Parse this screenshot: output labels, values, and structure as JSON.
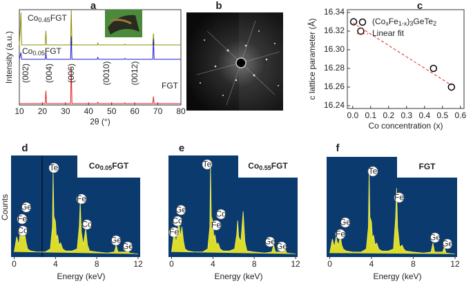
{
  "chart_data": [
    {
      "panel": "a",
      "type": "line",
      "xlabel": "2θ (°)",
      "ylabel": "Intensity (a.u.)",
      "x": [
        10,
        10.4,
        10.7,
        11,
        21.2,
        21.5,
        21.8,
        32.2,
        32.5,
        32.8,
        43.7,
        44,
        44.3,
        55.4,
        55.7,
        56,
        67.8,
        68.1,
        68.4,
        80
      ],
      "xlim": [
        10,
        80
      ],
      "xticks": [
        10,
        20,
        30,
        40,
        50,
        60,
        70,
        80
      ],
      "ylim": [
        0,
        100
      ],
      "series": [
        {
          "name": "Co0.45FGT",
          "color": "#8c8c00",
          "values": [
            63,
            80,
            97,
            63,
            63,
            78,
            63,
            63,
            100,
            63,
            63,
            65,
            63,
            63,
            64,
            63,
            63,
            75,
            63,
            63
          ]
        },
        {
          "name": "Co0.05FGT",
          "color": "#1f1fd0",
          "values": [
            48,
            52,
            55,
            48,
            48,
            55,
            48,
            48,
            72,
            48,
            48,
            50,
            48,
            48,
            49,
            48,
            48,
            69,
            48,
            48
          ]
        },
        {
          "name": "FGT",
          "color": "#e02020",
          "values": [
            1.5,
            1.5,
            1.5,
            1.5,
            1.5,
            15,
            1.5,
            1.5,
            39,
            1.5,
            1.5,
            3,
            1.5,
            1.5,
            2.5,
            1.5,
            1.5,
            9,
            1.5,
            1.5
          ]
        }
      ],
      "annotations": [
        "(002)",
        "(004)",
        "(006)",
        "(0010)",
        "(0012)"
      ]
    },
    {
      "panel": "c",
      "type": "scatter",
      "xlabel": "Co concentration (x)",
      "ylabel": "c lattice parameter (Å)",
      "xlim": [
        -0.03,
        0.62
      ],
      "xticks": [
        {
          "value": 0,
          "label": "0.0"
        },
        0.1,
        0.2,
        0.3,
        0.4,
        0.5,
        0.6
      ],
      "ylim": [
        16.237,
        16.343
      ],
      "yticks": [
        16.24,
        16.26,
        16.28,
        {
          "value": 16.3,
          "label": "16.30"
        },
        16.32,
        16.34
      ],
      "series": [
        {
          "name": "(CoxFe1-x)3GeTe2",
          "color": "#000000",
          "x": [
            0.005,
            0.045,
            0.45,
            0.55
          ],
          "values": [
            16.33,
            16.32,
            16.28,
            16.26
          ]
        },
        {
          "name": "Linear fit",
          "color": "#e02020",
          "type": "line",
          "x": [
            0,
            0.55
          ],
          "values": [
            16.329,
            16.262
          ]
        }
      ]
    },
    {
      "panel": "d",
      "type": "area",
      "title": "Co0.05FGT",
      "xlabel": "Energy (keV)",
      "ylabel": "Counts",
      "xlim": [
        -0.3,
        12.2
      ],
      "xticks": [
        0,
        4,
        8,
        12
      ],
      "ylim": [
        0,
        100
      ],
      "color": "#dcdc2a",
      "x": [
        0,
        0.25,
        0.45,
        0.6,
        0.72,
        0.85,
        1.0,
        1.15,
        1.3,
        1.6,
        2.2,
        3.0,
        3.5,
        3.7,
        3.77,
        3.85,
        4.0,
        4.1,
        4.2,
        4.35,
        4.5,
        4.7,
        5.0,
        5.6,
        6.1,
        6.3,
        6.4,
        6.5,
        6.7,
        6.93,
        7.1,
        7.3,
        8.0,
        9.0,
        9.7,
        9.88,
        10.05,
        10.8,
        10.98,
        11.15,
        12
      ],
      "values": [
        5,
        20,
        12,
        25,
        30,
        18,
        25,
        15,
        8,
        6,
        5,
        5,
        8,
        30,
        85,
        40,
        35,
        18,
        22,
        12,
        14,
        8,
        6,
        6,
        8,
        30,
        55,
        25,
        12,
        28,
        12,
        6,
        5,
        4,
        5,
        12,
        5,
        5,
        8,
        4,
        3
      ],
      "annotations": [
        "Ge",
        "Fe",
        "Co",
        "Te",
        "Fe",
        "Co",
        "Ge",
        "Ge"
      ]
    },
    {
      "panel": "e",
      "type": "area",
      "title": "Co0.55FGT",
      "xlabel": "Energy (keV)",
      "xlim": [
        -0.3,
        12.2
      ],
      "xticks": [
        0,
        4,
        8,
        12
      ],
      "ylim": [
        0,
        100
      ],
      "color": "#dcdc2a",
      "x": [
        0,
        0.25,
        0.45,
        0.6,
        0.72,
        0.85,
        1.0,
        1.15,
        1.3,
        1.6,
        2.2,
        3.0,
        3.5,
        3.7,
        3.77,
        3.85,
        4.0,
        4.1,
        4.2,
        4.35,
        4.5,
        4.7,
        5.0,
        5.6,
        6.1,
        6.3,
        6.4,
        6.5,
        6.7,
        6.93,
        7.1,
        7.3,
        8.0,
        9.0,
        9.7,
        9.88,
        10.05,
        10.8,
        10.98,
        11.15,
        12
      ],
      "values": [
        5,
        25,
        14,
        28,
        35,
        20,
        30,
        16,
        8,
        6,
        5,
        5,
        8,
        30,
        92,
        40,
        35,
        18,
        22,
        12,
        14,
        8,
        6,
        6,
        8,
        22,
        36,
        20,
        15,
        45,
        15,
        6,
        5,
        4,
        5,
        12,
        5,
        5,
        8,
        4,
        3
      ],
      "annotations": [
        "Ge",
        "Co",
        "Fe",
        "Te",
        "Co",
        "Fe",
        "Ge",
        "Ge"
      ]
    },
    {
      "panel": "f",
      "type": "area",
      "title": "FGT",
      "xlabel": "Energy (keV)",
      "xlim": [
        -0.3,
        12.2
      ],
      "xticks": [
        0,
        4,
        8,
        12
      ],
      "ylim": [
        0,
        100
      ],
      "color": "#dcdc2a",
      "x": [
        0,
        0.25,
        0.45,
        0.6,
        0.72,
        0.85,
        1.0,
        1.15,
        1.3,
        1.6,
        2.2,
        3.0,
        3.5,
        3.7,
        3.77,
        3.85,
        4.0,
        4.1,
        4.2,
        4.35,
        4.5,
        4.7,
        5.0,
        5.6,
        6.1,
        6.3,
        6.4,
        6.5,
        6.7,
        6.93,
        7.1,
        7.3,
        8.0,
        9.0,
        9.7,
        9.88,
        10.05,
        10.8,
        10.98,
        11.15,
        12
      ],
      "values": [
        4,
        18,
        10,
        20,
        15,
        12,
        22,
        12,
        8,
        6,
        5,
        5,
        8,
        30,
        88,
        40,
        35,
        18,
        22,
        12,
        14,
        8,
        6,
        6,
        8,
        38,
        69,
        30,
        10,
        12,
        8,
        6,
        5,
        4,
        5,
        14,
        5,
        5,
        10,
        4,
        3
      ],
      "annotations": [
        "Ge",
        "Fe",
        "Te",
        "Fe",
        "Ge",
        "Ge"
      ]
    }
  ],
  "image_panel": {
    "panel": "b"
  }
}
